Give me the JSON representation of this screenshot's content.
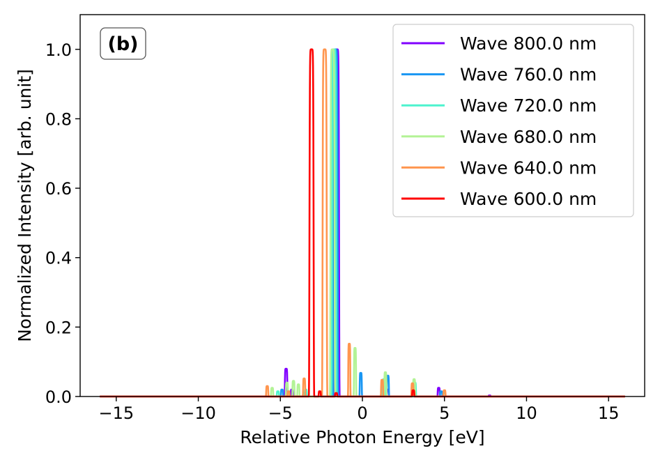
{
  "chart_data": {
    "type": "line",
    "panel_label": "(b)",
    "xlabel": "Relative Photon Energy [eV]",
    "ylabel": "Normalized Intensity [arb. unit]",
    "xlim": [
      -17.2,
      17.2
    ],
    "ylim": [
      0.0,
      1.1
    ],
    "xticks": [
      -15,
      -10,
      -5,
      0,
      5,
      10,
      15
    ],
    "xtick_labels": [
      "−15",
      "−10",
      "−5",
      "0",
      "5",
      "10",
      "15"
    ],
    "yticks": [
      0.0,
      0.2,
      0.4,
      0.6,
      0.8,
      1.0
    ],
    "ytick_labels": [
      "0.0",
      "0.2",
      "0.4",
      "0.6",
      "0.8",
      "1.0"
    ],
    "x_range": [
      -16,
      16
    ],
    "legend_location": "upper right",
    "series": [
      {
        "name": "Wave 800.0 nm",
        "color": "#8000ff",
        "peak_x": -1.55,
        "peak_height": 1.0,
        "peak_width": 0.12,
        "sidebands": [
          {
            "x": -4.65,
            "h": 0.08,
            "w": 0.07
          },
          {
            "x": -4.3,
            "h": 0.02,
            "w": 0.06
          },
          {
            "x": 1.55,
            "h": 0.02,
            "w": 0.06
          },
          {
            "x": 4.65,
            "h": 0.025,
            "w": 0.06
          },
          {
            "x": 7.75,
            "h": 0.003,
            "w": 0.06
          }
        ]
      },
      {
        "name": "Wave 760.0 nm",
        "color": "#1996f3",
        "peak_x": -1.63,
        "peak_height": 1.0,
        "peak_width": 0.12,
        "sidebands": [
          {
            "x": -4.9,
            "h": 0.02,
            "w": 0.06
          },
          {
            "x": -0.1,
            "h": 0.068,
            "w": 0.06
          },
          {
            "x": 1.55,
            "h": 0.06,
            "w": 0.06
          },
          {
            "x": 4.8,
            "h": 0.015,
            "w": 0.06
          }
        ]
      },
      {
        "name": "Wave 720.0 nm",
        "color": "#4df3ce",
        "peak_x": -1.72,
        "peak_height": 1.0,
        "peak_width": 0.12,
        "sidebands": [
          {
            "x": -5.15,
            "h": 0.015,
            "w": 0.06
          },
          {
            "x": -3.45,
            "h": 0.02,
            "w": 0.06
          },
          {
            "x": 1.3,
            "h": 0.05,
            "w": 0.06
          },
          {
            "x": 3.2,
            "h": 0.04,
            "w": 0.06
          },
          {
            "x": 5.0,
            "h": 0.01,
            "w": 0.06
          }
        ]
      },
      {
        "name": "Wave 680.0 nm",
        "color": "#b3f396",
        "peak_x": -1.82,
        "peak_height": 1.0,
        "peak_width": 0.12,
        "sidebands": [
          {
            "x": -5.5,
            "h": 0.025,
            "w": 0.06
          },
          {
            "x": -4.6,
            "h": 0.04,
            "w": 0.06
          },
          {
            "x": -4.2,
            "h": 0.045,
            "w": 0.06
          },
          {
            "x": -3.9,
            "h": 0.035,
            "w": 0.06
          },
          {
            "x": -0.45,
            "h": 0.14,
            "w": 0.06
          },
          {
            "x": 1.4,
            "h": 0.07,
            "w": 0.06
          },
          {
            "x": 3.15,
            "h": 0.05,
            "w": 0.06
          }
        ]
      },
      {
        "name": "Wave 640.0 nm",
        "color": "#ff964f",
        "peak_x": -2.3,
        "peak_height": 1.0,
        "peak_width": 0.12,
        "sidebands": [
          {
            "x": -5.8,
            "h": 0.03,
            "w": 0.06
          },
          {
            "x": -4.5,
            "h": 0.015,
            "w": 0.06
          },
          {
            "x": -3.55,
            "h": 0.052,
            "w": 0.06
          },
          {
            "x": -0.8,
            "h": 0.152,
            "w": 0.06
          },
          {
            "x": 1.2,
            "h": 0.048,
            "w": 0.06
          },
          {
            "x": 3.05,
            "h": 0.038,
            "w": 0.06
          },
          {
            "x": 5.0,
            "h": 0.018,
            "w": 0.06
          }
        ]
      },
      {
        "name": "Wave 600.0 nm",
        "color": "#ff0000",
        "peak_x": -3.1,
        "peak_height": 1.0,
        "peak_width": 0.12,
        "sidebands": [
          {
            "x": -2.6,
            "h": 0.015,
            "w": 0.06
          },
          {
            "x": -1.6,
            "h": 0.01,
            "w": 0.06
          },
          {
            "x": 3.1,
            "h": 0.018,
            "w": 0.06
          }
        ]
      }
    ]
  }
}
